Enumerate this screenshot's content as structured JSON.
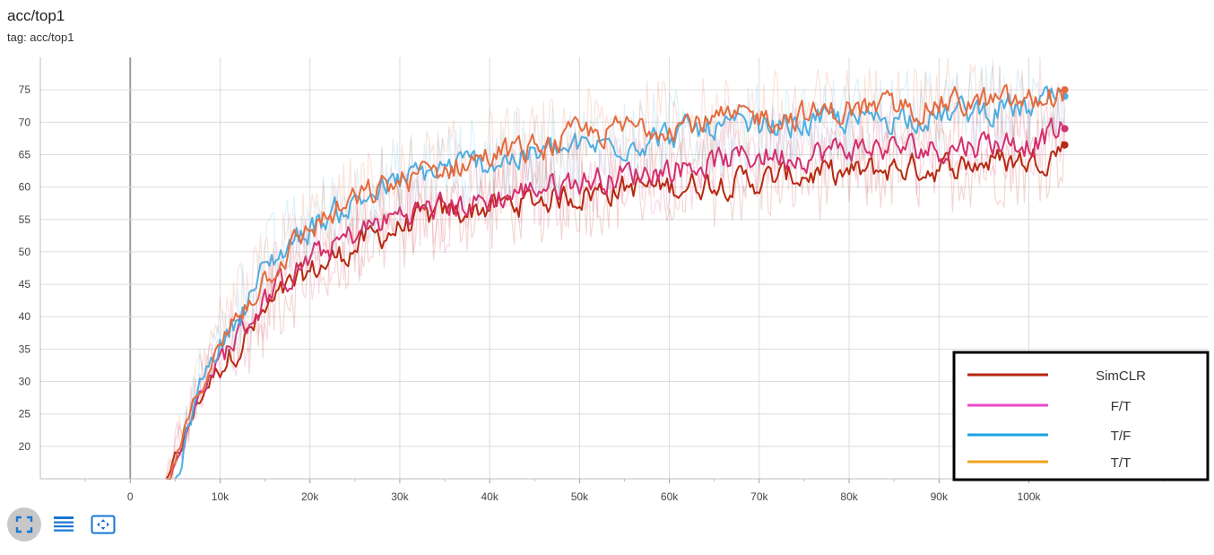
{
  "header": {
    "title": "acc/top1",
    "subtitle": "tag: acc/top1"
  },
  "toolbar": {
    "buttons": [
      {
        "icon": "fullscreen-icon"
      },
      {
        "icon": "data-table-icon"
      },
      {
        "icon": "fit-domain-icon"
      }
    ],
    "accent": "#1976d2"
  },
  "chart_data": {
    "type": "line",
    "title": "acc/top1",
    "xlabel": "",
    "ylabel": "",
    "xlim": [
      -10000,
      120000
    ],
    "ylim": [
      15,
      80
    ],
    "x_ticks": [
      0,
      10000,
      20000,
      30000,
      40000,
      50000,
      60000,
      70000,
      80000,
      90000,
      100000
    ],
    "x_tick_labels": [
      "0",
      "10k",
      "20k",
      "30k",
      "40k",
      "50k",
      "60k",
      "70k",
      "80k",
      "90k",
      "100k"
    ],
    "y_ticks": [
      20,
      25,
      30,
      35,
      40,
      45,
      50,
      55,
      60,
      65,
      70,
      75
    ],
    "grid": true,
    "legend_position": "bottom-right",
    "series": [
      {
        "name": "SimCLR",
        "color": "#b5290f",
        "x": [
          4000,
          5000,
          6000,
          7000,
          8000,
          10000,
          12000,
          15000,
          18000,
          20000,
          25000,
          30000,
          35000,
          40000,
          45000,
          50000,
          55000,
          60000,
          65000,
          70000,
          75000,
          80000,
          85000,
          90000,
          95000,
          100000,
          104000
        ],
        "y": [
          14,
          19,
          22,
          26,
          29,
          33,
          36,
          41,
          45,
          47,
          51,
          54,
          56,
          57,
          58,
          59,
          60,
          60,
          61,
          61,
          62,
          62,
          63,
          63,
          64,
          64,
          66.5
        ]
      },
      {
        "name": "F/T",
        "color": "#d62d6e",
        "x": [
          4000,
          5000,
          6000,
          7000,
          8000,
          10000,
          12000,
          15000,
          18000,
          20000,
          25000,
          30000,
          35000,
          40000,
          45000,
          50000,
          55000,
          60000,
          65000,
          70000,
          75000,
          80000,
          85000,
          90000,
          95000,
          100000,
          104000
        ],
        "y": [
          14,
          19,
          22,
          26,
          30,
          34,
          38,
          43,
          47,
          49,
          53,
          56,
          57,
          58,
          60,
          61,
          62,
          63,
          64,
          65,
          65,
          66,
          66,
          66,
          67,
          67,
          69
        ]
      },
      {
        "name": "T/F",
        "color": "#4ab0e6",
        "x": [
          5000,
          6000,
          7000,
          8000,
          10000,
          12000,
          15000,
          18000,
          20000,
          25000,
          30000,
          35000,
          40000,
          45000,
          50000,
          55000,
          60000,
          65000,
          70000,
          75000,
          80000,
          85000,
          90000,
          95000,
          100000,
          104000
        ],
        "y": [
          14,
          22,
          27,
          32,
          36,
          41,
          48,
          52,
          54,
          58,
          61,
          63,
          64,
          65,
          66,
          67,
          68,
          69,
          69,
          70,
          70,
          71,
          71,
          72,
          72,
          74
        ]
      },
      {
        "name": "T/T",
        "color": "#e46b3f",
        "x": [
          4000,
          5000,
          6000,
          7000,
          8000,
          10000,
          12000,
          15000,
          18000,
          20000,
          25000,
          30000,
          35000,
          40000,
          45000,
          50000,
          55000,
          60000,
          65000,
          70000,
          75000,
          80000,
          85000,
          90000,
          95000,
          100000,
          104000
        ],
        "y": [
          14,
          19,
          23,
          27,
          31,
          36,
          41,
          47,
          51,
          54,
          58,
          61,
          63,
          65,
          66,
          68,
          69,
          70,
          70,
          71,
          71,
          72,
          72,
          73,
          73,
          73,
          75
        ]
      }
    ],
    "legend": [
      {
        "name": "SimCLR",
        "color": "#b5290f"
      },
      {
        "name": "F/T",
        "color": "#ee47c8"
      },
      {
        "name": "T/F",
        "color": "#1aa4e0"
      },
      {
        "name": "T/T",
        "color": "#f0a320"
      }
    ]
  }
}
